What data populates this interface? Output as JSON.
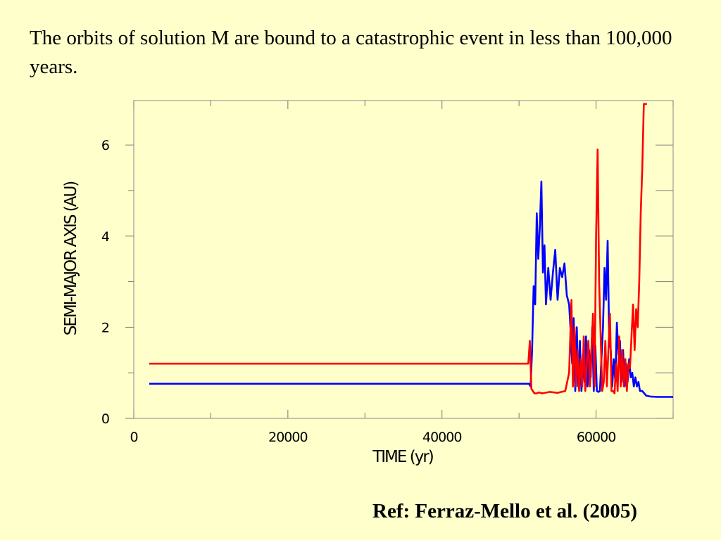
{
  "slide": {
    "intro": "The orbits of solution M are bound to a catastrophic event in less than 100,000 years.",
    "reference": "Ref: Ferraz-Mello et al. (2005)"
  },
  "colors": {
    "background": "#ffffcc",
    "red_series": "#ff0000",
    "blue_series": "#0000ff"
  },
  "chart_data": {
    "type": "line",
    "title": "",
    "xlabel": "TIME (yr)",
    "ylabel": "SEMI-MAJOR AXIS (AU)",
    "xlim": [
      0,
      70000
    ],
    "ylim": [
      0,
      7
    ],
    "xticks": [
      0,
      20000,
      40000,
      60000
    ],
    "yticks": [
      0,
      2,
      4,
      6
    ],
    "grid": false,
    "series": [
      {
        "color": "#0000ff",
        "x": [
          2000,
          10000,
          20000,
          30000,
          40000,
          50000,
          51300,
          51500,
          51700,
          51900,
          52100,
          52300,
          52500,
          52700,
          52900,
          53100,
          53300,
          53500,
          53800,
          54100,
          54400,
          54700,
          55000,
          55300,
          55600,
          55900,
          56200,
          56500,
          56700,
          56900,
          57100,
          57300,
          57500,
          57700,
          57900,
          58100,
          58300,
          58500,
          58700,
          58900,
          59100,
          59300,
          59500,
          59700,
          59900,
          60100,
          60300,
          60500,
          60700,
          60900,
          61100,
          61300,
          61500,
          61700,
          61900,
          62100,
          62300,
          62500,
          62700,
          62900,
          63100,
          63300,
          63500,
          63700,
          63900,
          64100,
          64300,
          64500,
          64700,
          64900,
          65100,
          65300,
          65500,
          65700,
          66000,
          66500,
          67000,
          68000,
          70000
        ],
        "y": [
          0.76,
          0.76,
          0.76,
          0.76,
          0.76,
          0.76,
          0.76,
          0.7,
          1.5,
          2.9,
          2.5,
          4.5,
          3.5,
          4.2,
          5.2,
          3.2,
          3.8,
          2.5,
          3.3,
          2.6,
          3.2,
          3.7,
          2.6,
          3.3,
          3.1,
          3.4,
          2.7,
          2.5,
          1.9,
          1.2,
          2.2,
          0.6,
          2.0,
          0.7,
          1.7,
          0.6,
          1.4,
          0.8,
          1.8,
          0.7,
          1.5,
          0.9,
          2.0,
          0.6,
          1.6,
          0.6,
          0.58,
          0.6,
          1.3,
          2.0,
          3.3,
          2.6,
          3.9,
          1.8,
          1.5,
          0.7,
          1.3,
          0.8,
          2.1,
          1.4,
          1.7,
          0.8,
          1.5,
          0.7,
          1.2,
          0.8,
          1.3,
          0.9,
          1.0,
          0.7,
          0.9,
          0.7,
          0.8,
          0.6,
          0.6,
          0.5,
          0.48,
          0.47,
          0.47
        ]
      },
      {
        "color": "#ff0000",
        "x": [
          2000,
          10000,
          20000,
          30000,
          40000,
          50000,
          51200,
          51400,
          51600,
          51800,
          52000,
          52300,
          52600,
          53000,
          54000,
          55000,
          56000,
          56500,
          56800,
          57000,
          57200,
          57400,
          57600,
          57800,
          58000,
          58200,
          58400,
          58600,
          58800,
          59000,
          59200,
          59400,
          59600,
          59800,
          60000,
          60200,
          60400,
          60600,
          60800,
          61000,
          61200,
          61400,
          61600,
          61800,
          62000,
          62200,
          62400,
          62600,
          62800,
          63000,
          63200,
          63400,
          63600,
          63800,
          64000,
          64200,
          64400,
          64600,
          64800,
          65000,
          65200,
          65400,
          65600,
          65800,
          66000,
          66200,
          66400,
          66600
        ],
        "y": [
          1.2,
          1.2,
          1.2,
          1.2,
          1.2,
          1.2,
          1.2,
          1.7,
          0.65,
          0.6,
          0.55,
          0.55,
          0.57,
          0.55,
          0.58,
          0.56,
          0.6,
          1.0,
          2.6,
          0.7,
          2.0,
          0.7,
          1.5,
          0.6,
          1.3,
          0.7,
          1.8,
          0.6,
          1.2,
          1.7,
          0.7,
          1.5,
          2.3,
          0.7,
          4.0,
          5.9,
          3.0,
          1.8,
          0.6,
          0.8,
          1.7,
          0.7,
          1.5,
          2.3,
          0.6,
          0.6,
          0.55,
          1.2,
          0.6,
          1.8,
          0.7,
          1.5,
          0.7,
          1.3,
          0.6,
          1.2,
          1.1,
          1.8,
          2.5,
          1.5,
          2.4,
          2.0,
          3.0,
          4.5,
          5.5,
          6.9,
          6.9,
          6.9
        ]
      }
    ]
  }
}
